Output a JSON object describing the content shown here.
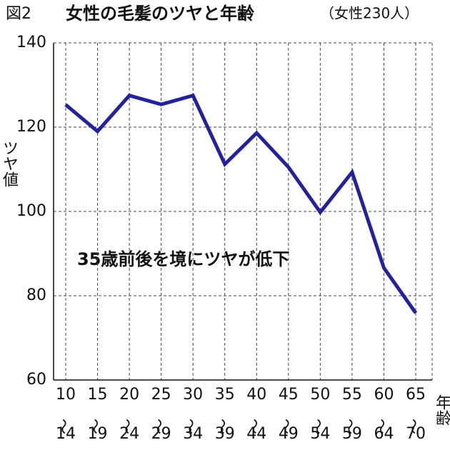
{
  "chart_data": {
    "type": "line",
    "figure_label": "図2",
    "title": "女性の毛髪のツヤと年齢",
    "subtitle": "（女性230人）",
    "y_label": "ツヤ値",
    "x_label": "年齢",
    "annotation": "35歳前後を境にツヤが低下",
    "categories": [
      "10〜14",
      "15〜19",
      "20〜24",
      "25〜29",
      "30〜34",
      "35〜39",
      "40〜44",
      "45〜49",
      "50〜54",
      "55〜59",
      "60〜64",
      "65〜70"
    ],
    "series": [
      {
        "color": "#22229c",
        "values": [
          125.3,
          119,
          127.5,
          125.4,
          127.5,
          111.2,
          118.6,
          110.5,
          99.8,
          109.3,
          86.6,
          75.9
        ]
      }
    ],
    "ylim": [
      60,
      140
    ],
    "yticks": [
      60,
      80,
      100,
      120,
      140
    ],
    "grid": true
  }
}
